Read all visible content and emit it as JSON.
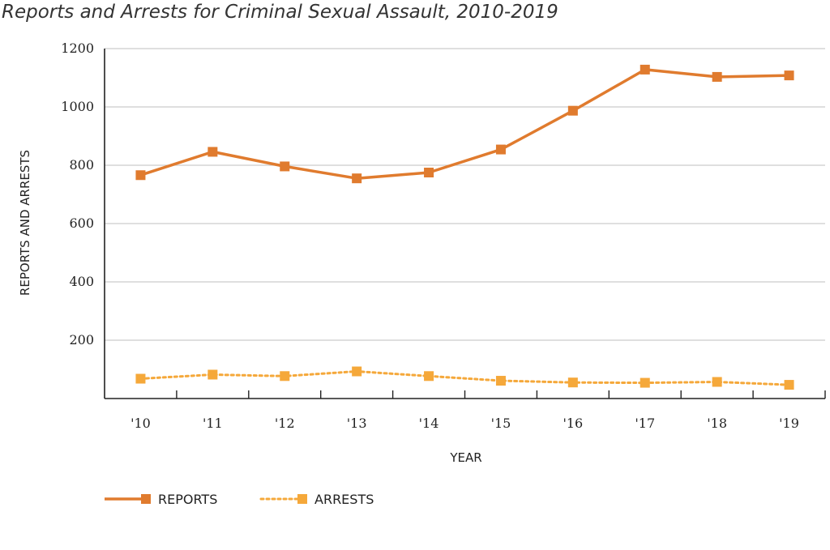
{
  "chart_data": {
    "type": "line",
    "title": "Reports and Arrests for Criminal Sexual Assault, 2010-2019",
    "xlabel": "YEAR",
    "ylabel": "REPORTS AND ARRESTS",
    "categories": [
      "'10",
      "'11",
      "'12",
      "'13",
      "'14",
      "'15",
      "'16",
      "'17",
      "'18",
      "'19"
    ],
    "ylim": [
      0,
      1200
    ],
    "yticks": [
      200,
      400,
      600,
      800,
      1000,
      1200
    ],
    "grid": "horizontal",
    "legend_position": "bottom-left",
    "series": [
      {
        "name": "REPORTS",
        "color": "#e07b2e",
        "style": "solid",
        "values": [
          766,
          846,
          796,
          755,
          775,
          854,
          987,
          1128,
          1103,
          1108
        ]
      },
      {
        "name": "ARRESTS",
        "color": "#f5a83a",
        "style": "dotted",
        "values": [
          68,
          82,
          77,
          93,
          77,
          61,
          55,
          54,
          57,
          47
        ]
      }
    ]
  }
}
